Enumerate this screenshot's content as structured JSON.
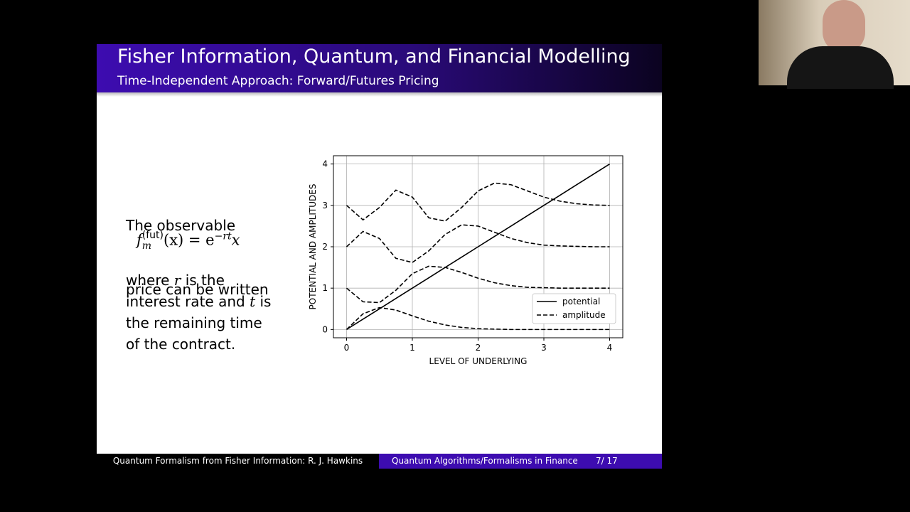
{
  "slide": {
    "title": "Fisher Information, Quantum, and Financial Modelling",
    "subtitle": "Time-Independent Approach: Forward/Futures Pricing",
    "intro": [
      "The observable",
      "price can be written"
    ],
    "formula": {
      "base": "f",
      "sup": "(fut)",
      "sub": "m",
      "arg": "(x) = e",
      "exp": "−rt",
      "tail": "x"
    },
    "body": [
      [
        "where ",
        "r",
        " is the"
      ],
      [
        "interest rate and ",
        "t",
        " is"
      ],
      [
        "the remaining time"
      ],
      [
        "of the contract."
      ]
    ],
    "footer_left": "Quantum Formalism from Fisher Information: R. J. Hawkins",
    "footer_mid": "Quantum Algorithms/Formalisms in Finance",
    "page": "7/ 17"
  },
  "chart_data": {
    "type": "line",
    "x_label": "LEVEL OF UNDERLYING",
    "y_label": "POTENTIAL AND AMPLITUDES",
    "x": [
      0,
      0.25,
      0.5,
      0.75,
      1,
      1.25,
      1.5,
      1.75,
      2,
      2.25,
      2.5,
      2.75,
      3,
      3.25,
      3.5,
      3.75,
      4
    ],
    "series": [
      {
        "name": "potential",
        "color": "#000000",
        "style": "solid",
        "values": [
          [
            0,
            0.25,
            0.5,
            0.75,
            1,
            1.25,
            1.5,
            1.75,
            2,
            2.25,
            2.5,
            2.75,
            3,
            3.25,
            3.5,
            3.75,
            4
          ]
        ]
      },
      {
        "name": "amplitude",
        "color": "#000000",
        "style": "dashed",
        "values": [
          [
            0,
            0.38,
            0.53,
            0.47,
            0.33,
            0.2,
            0.11,
            0.05,
            0.02,
            0.01,
            0,
            0,
            0,
            0,
            0,
            0,
            0
          ],
          [
            1,
            0.67,
            0.65,
            0.95,
            1.35,
            1.53,
            1.5,
            1.38,
            1.24,
            1.13,
            1.06,
            1.02,
            1.01,
            1,
            1,
            1,
            1
          ],
          [
            2,
            2.37,
            2.2,
            1.72,
            1.62,
            1.9,
            2.3,
            2.53,
            2.5,
            2.35,
            2.2,
            2.1,
            2.04,
            2.02,
            2.01,
            2,
            2
          ],
          [
            3,
            2.65,
            2.95,
            3.37,
            3.2,
            2.7,
            2.62,
            2.95,
            3.35,
            3.54,
            3.5,
            3.35,
            3.2,
            3.1,
            3.04,
            3.01,
            3
          ]
        ]
      }
    ],
    "xlim": [
      -0.2,
      4.2
    ],
    "ylim": [
      -0.2,
      4.2
    ],
    "xticks": [
      0,
      1,
      2,
      3,
      4
    ],
    "yticks": [
      0,
      1,
      2,
      3,
      4
    ],
    "grid": true,
    "legend": "lower right"
  }
}
